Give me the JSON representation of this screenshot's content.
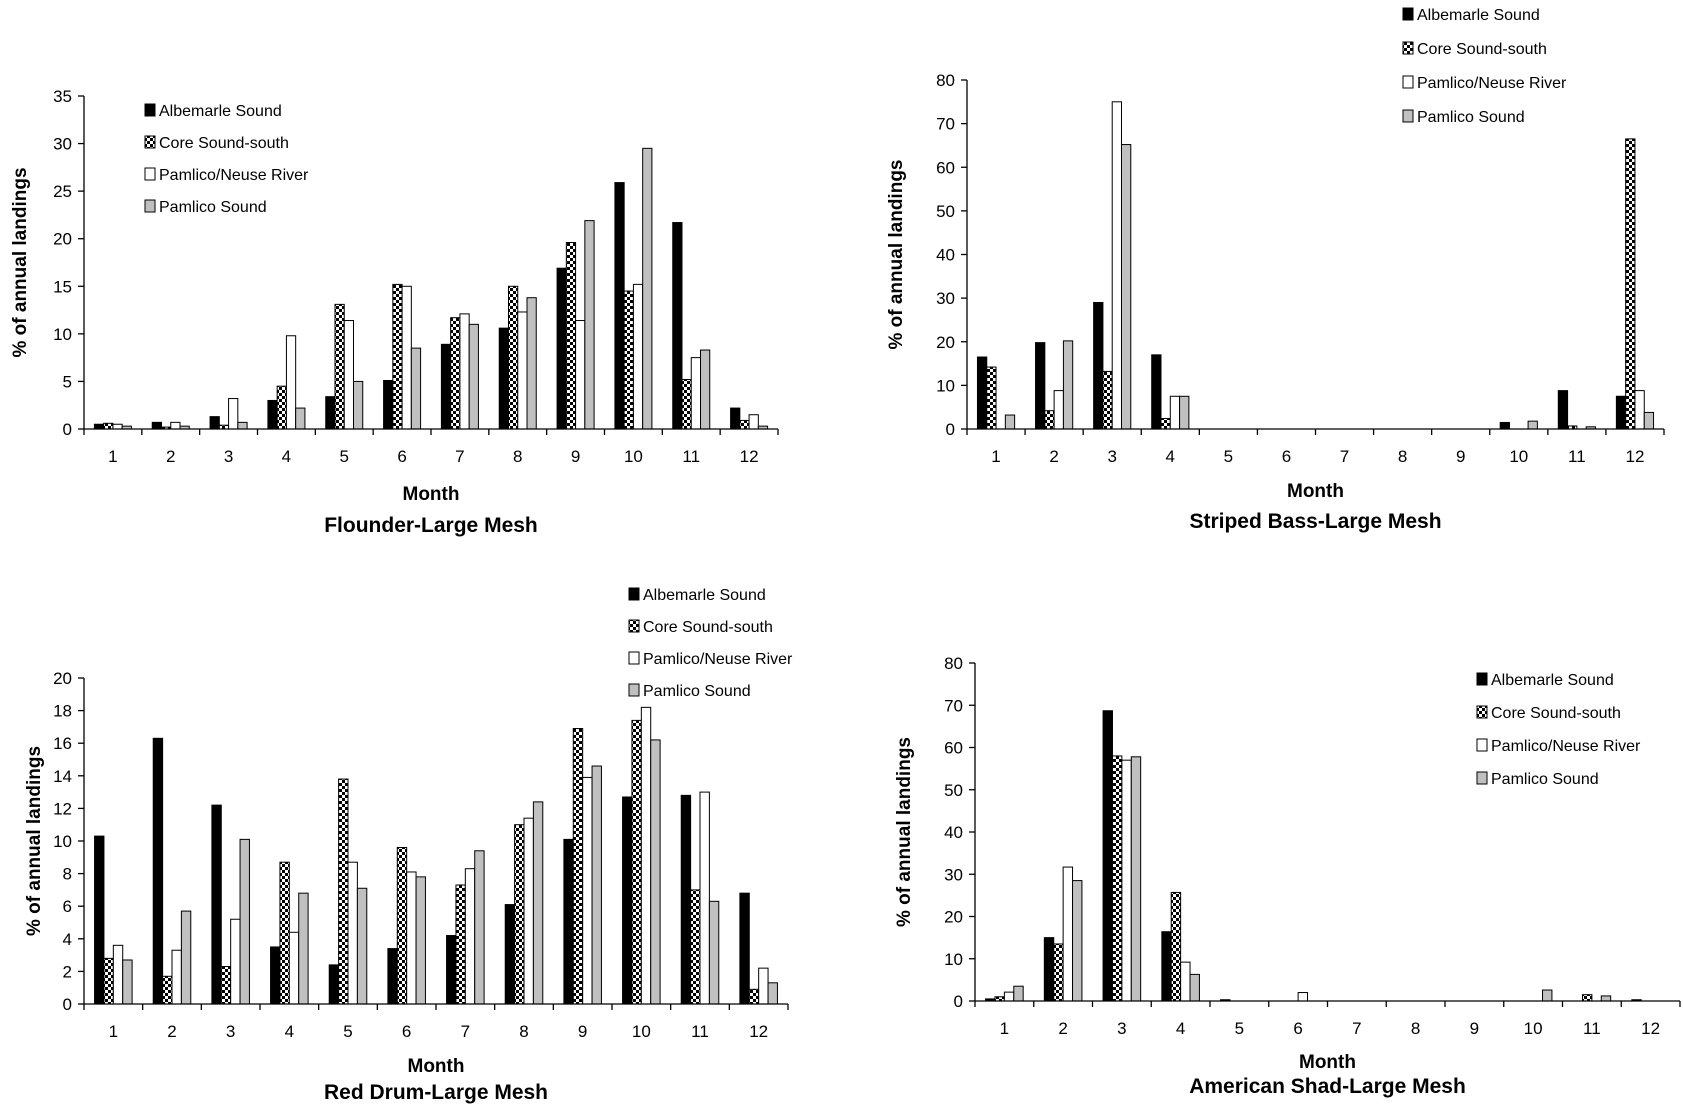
{
  "colors": {
    "albemarle": "#000000",
    "core": "pattern-checker",
    "pamlico_river": "#ffffff",
    "pamlico_sound": "#c0c0c0",
    "axis": "#000000"
  },
  "chart_data": [
    {
      "id": "flounder",
      "type": "bar",
      "title": "Flounder-Large Mesh",
      "xlabel": "Month",
      "ylabel": "% of annual landings",
      "categories": [
        "1",
        "2",
        "3",
        "4",
        "5",
        "6",
        "7",
        "8",
        "9",
        "10",
        "11",
        "12"
      ],
      "ylim": [
        0,
        35
      ],
      "yticks": [
        0,
        5,
        10,
        15,
        20,
        25,
        30,
        35
      ],
      "legend_position": "top-left",
      "series": [
        {
          "name": "Albemarle Sound",
          "values": [
            0.5,
            0.7,
            1.3,
            3.0,
            3.4,
            5.1,
            8.9,
            10.6,
            16.9,
            25.9,
            21.7,
            2.2
          ]
        },
        {
          "name": "Core Sound-south",
          "values": [
            0.6,
            0.2,
            0.4,
            4.5,
            13.1,
            15.2,
            11.7,
            15.0,
            19.6,
            14.5,
            5.2,
            0.9
          ]
        },
        {
          "name": "Pamlico/Neuse River",
          "values": [
            0.5,
            0.7,
            3.2,
            9.8,
            11.4,
            15.0,
            12.1,
            12.3,
            11.4,
            15.2,
            7.5,
            1.5
          ]
        },
        {
          "name": "Pamlico Sound",
          "values": [
            0.3,
            0.3,
            0.7,
            2.2,
            5.0,
            8.5,
            11.0,
            13.8,
            21.9,
            29.5,
            8.3,
            0.3
          ]
        }
      ]
    },
    {
      "id": "striped-bass",
      "type": "bar",
      "title": "Striped Bass-Large Mesh",
      "xlabel": "Month",
      "ylabel": "% of annual landings",
      "categories": [
        "1",
        "2",
        "3",
        "4",
        "5",
        "6",
        "7",
        "8",
        "9",
        "10",
        "11",
        "12"
      ],
      "ylim": [
        0,
        80
      ],
      "yticks": [
        0,
        10,
        20,
        30,
        40,
        50,
        60,
        70,
        80
      ],
      "legend_position": "top-right",
      "series": [
        {
          "name": "Albemarle Sound",
          "values": [
            16.5,
            19.8,
            29.0,
            17.0,
            0,
            0,
            0,
            0,
            0,
            1.5,
            8.8,
            7.5
          ]
        },
        {
          "name": "Core Sound-south",
          "values": [
            14.2,
            4.2,
            13.2,
            2.4,
            0,
            0,
            0,
            0,
            0,
            0,
            0.7,
            66.5
          ]
        },
        {
          "name": "Pamlico/Neuse River",
          "values": [
            0,
            8.8,
            75.0,
            7.5,
            0,
            0,
            0,
            0,
            0,
            0,
            0,
            8.8
          ]
        },
        {
          "name": "Pamlico Sound",
          "values": [
            3.2,
            20.2,
            65.2,
            7.5,
            0,
            0,
            0,
            0,
            0,
            1.8,
            0.5,
            3.8
          ]
        }
      ]
    },
    {
      "id": "red-drum",
      "type": "bar",
      "title": "Red Drum-Large Mesh",
      "xlabel": "Month",
      "ylabel": "% of annual landings",
      "categories": [
        "1",
        "2",
        "3",
        "4",
        "5",
        "6",
        "7",
        "8",
        "9",
        "10",
        "11",
        "12"
      ],
      "ylim": [
        0,
        20
      ],
      "yticks": [
        0,
        2,
        4,
        6,
        8,
        10,
        12,
        14,
        16,
        18,
        20
      ],
      "legend_position": "top-right",
      "series": [
        {
          "name": "Albemarle Sound",
          "values": [
            10.3,
            16.3,
            12.2,
            3.5,
            2.4,
            3.4,
            4.2,
            6.1,
            10.1,
            12.7,
            12.8,
            6.8
          ]
        },
        {
          "name": "Core Sound-south",
          "values": [
            2.8,
            1.7,
            2.3,
            8.7,
            13.8,
            9.6,
            7.3,
            11.0,
            16.9,
            17.4,
            7.0,
            0.9
          ]
        },
        {
          "name": "Pamlico/Neuse River",
          "values": [
            3.6,
            3.3,
            5.2,
            4.4,
            8.7,
            8.1,
            8.3,
            11.4,
            13.9,
            18.2,
            13.0,
            2.2
          ]
        },
        {
          "name": "Pamlico Sound",
          "values": [
            2.7,
            5.7,
            10.1,
            6.8,
            7.1,
            7.8,
            9.4,
            12.4,
            14.6,
            16.2,
            6.3,
            1.3
          ]
        }
      ]
    },
    {
      "id": "american-shad",
      "type": "bar",
      "title": "American Shad-Large Mesh",
      "xlabel": "Month",
      "ylabel": "% of annual landings",
      "categories": [
        "1",
        "2",
        "3",
        "4",
        "5",
        "6",
        "7",
        "8",
        "9",
        "10",
        "11",
        "12"
      ],
      "ylim": [
        0,
        80
      ],
      "yticks": [
        0,
        10,
        20,
        30,
        40,
        50,
        60,
        70,
        80
      ],
      "legend_position": "top-right",
      "series": [
        {
          "name": "Albemarle Sound",
          "values": [
            0.5,
            15.0,
            68.7,
            16.4,
            0.3,
            0,
            0,
            0,
            0,
            0,
            0,
            0.3
          ]
        },
        {
          "name": "Core Sound-south",
          "values": [
            1.0,
            13.5,
            58.0,
            25.7,
            0,
            0,
            0,
            0,
            0,
            0,
            1.5,
            0
          ]
        },
        {
          "name": "Pamlico/Neuse River",
          "values": [
            2.1,
            31.7,
            57.0,
            9.2,
            0,
            2.0,
            0,
            0,
            0,
            0,
            0,
            0
          ]
        },
        {
          "name": "Pamlico Sound",
          "values": [
            3.5,
            28.5,
            57.8,
            6.3,
            0,
            0,
            0,
            0,
            0,
            2.6,
            1.2,
            0
          ]
        }
      ]
    }
  ]
}
